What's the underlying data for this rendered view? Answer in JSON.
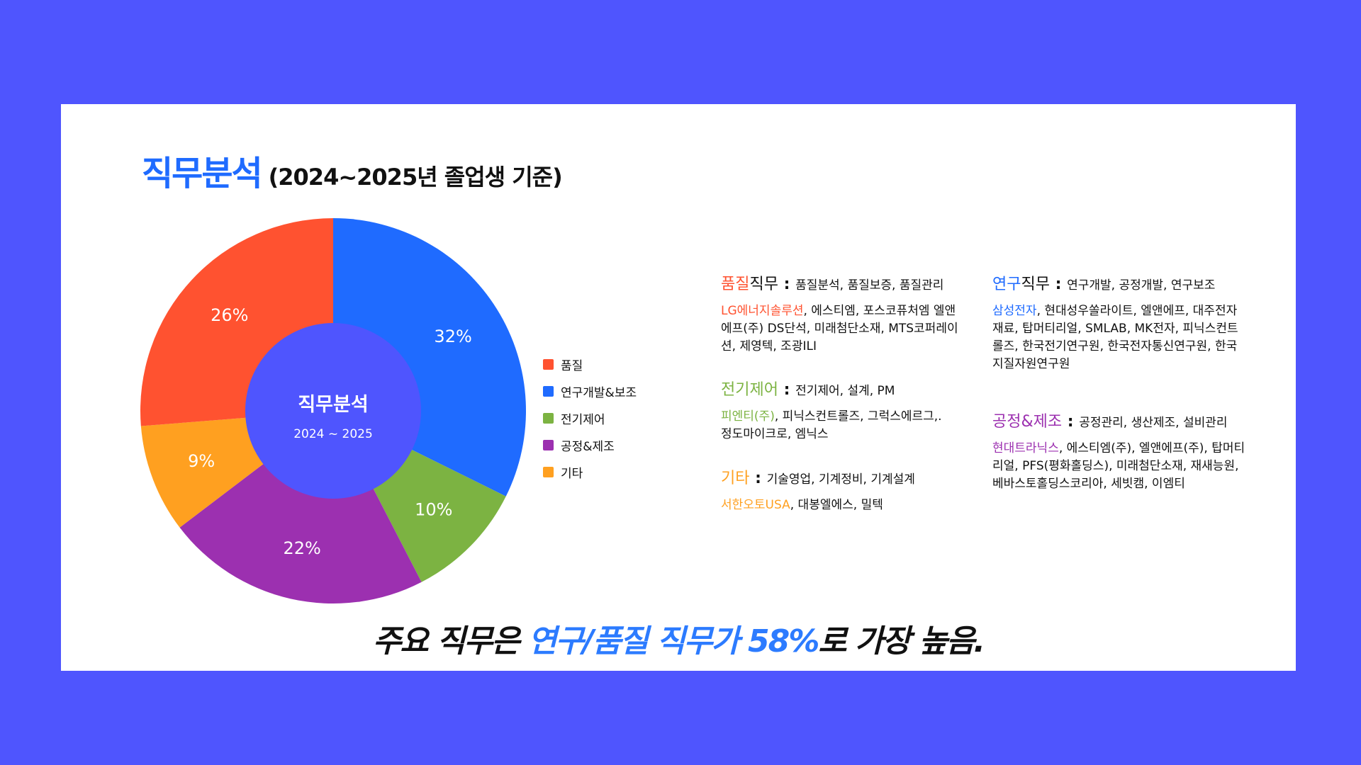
{
  "title": {
    "main": "직무분석",
    "sub": "(2024~2025년 졸업생 기준)"
  },
  "colors": {
    "background": "#4f55fe",
    "quality": "#ff5230",
    "research": "#1f6bff",
    "electric": "#7cb342",
    "process": "#9c30b0",
    "other": "#ffa020",
    "center": "#4f55fe"
  },
  "chart_data": {
    "type": "pie",
    "center_title": "직무분석",
    "center_sub": "2024 ~ 2025",
    "slices": [
      {
        "name": "연구개발&보조",
        "value": 32,
        "label": "32%",
        "color": "#1f6bff"
      },
      {
        "name": "전기제어",
        "value": 10,
        "label": "10%",
        "color": "#7cb342"
      },
      {
        "name": "공정&제조",
        "value": 22,
        "label": "22%",
        "color": "#9c30b0"
      },
      {
        "name": "기타",
        "value": 9,
        "label": "9%",
        "color": "#ffa020"
      },
      {
        "name": "품질",
        "value": 26,
        "label": "26%",
        "color": "#ff5230"
      }
    ],
    "legend": [
      {
        "name": "품질",
        "color": "#ff5230"
      },
      {
        "name": "연구개발&보조",
        "color": "#1f6bff"
      },
      {
        "name": "전기제어",
        "color": "#7cb342"
      },
      {
        "name": "공정&제조",
        "color": "#9c30b0"
      },
      {
        "name": "기타",
        "color": "#ffa020"
      }
    ]
  },
  "categories": {
    "quality": {
      "hl": "품질",
      "rest": "직무",
      "colon": " : ",
      "duties": "품질분석, 품질보증, 품질관리",
      "lead": "LG에너지솔루션",
      "companies": ", 에스티엠, 포스코퓨처엠 엘앤에프(주) DS단석,  미래첨단소재, MTS코퍼레이션, 제영텍, 조광ILI"
    },
    "electric": {
      "hl": "전기제어",
      "rest": "",
      "colon": " : ",
      "duties": "전기제어, 설계, PM",
      "lead": "피엔티(주)",
      "companies": ", 피닉스컨트롤즈, 그럭스에르그,. 정도마이크로, 엠닉스"
    },
    "other": {
      "hl": "기타",
      "rest": "",
      "colon": " : ",
      "duties": "기술영업, 기계정비, 기계설계",
      "lead": "서한오토USA",
      "companies": ", 대봉엘에스,  밀텍"
    },
    "research": {
      "hl": "연구",
      "rest": "직무",
      "colon": " : ",
      "duties": "연구개발, 공정개발, 연구보조",
      "lead": "삼성전자",
      "companies": ", 현대성우쏠라이트, 엘앤에프, 대주전자재료, 탑머티리얼, SMLAB, MK전자, 피닉스컨트롤즈, 한국전기연구원, 한국전자통신연구원, 한국지질자원연구원"
    },
    "process": {
      "hl": "공정&제조",
      "rest": "",
      "colon": " : ",
      "duties": "공정관리, 생산제조, 설비관리",
      "lead": "현대트라닉스",
      "companies": ", 에스티엠(주),  엘앤에프(주), 탑머티리얼, PFS(평화홀딩스), 미래첨단소재, 재새능원, 베바스토홀딩스코리아, 세빗캠, 이엠티"
    }
  },
  "footer": {
    "pre": "주요 직무은 ",
    "accent": "연구/품질 직무가 58%",
    "post": "로 가장 높음."
  }
}
